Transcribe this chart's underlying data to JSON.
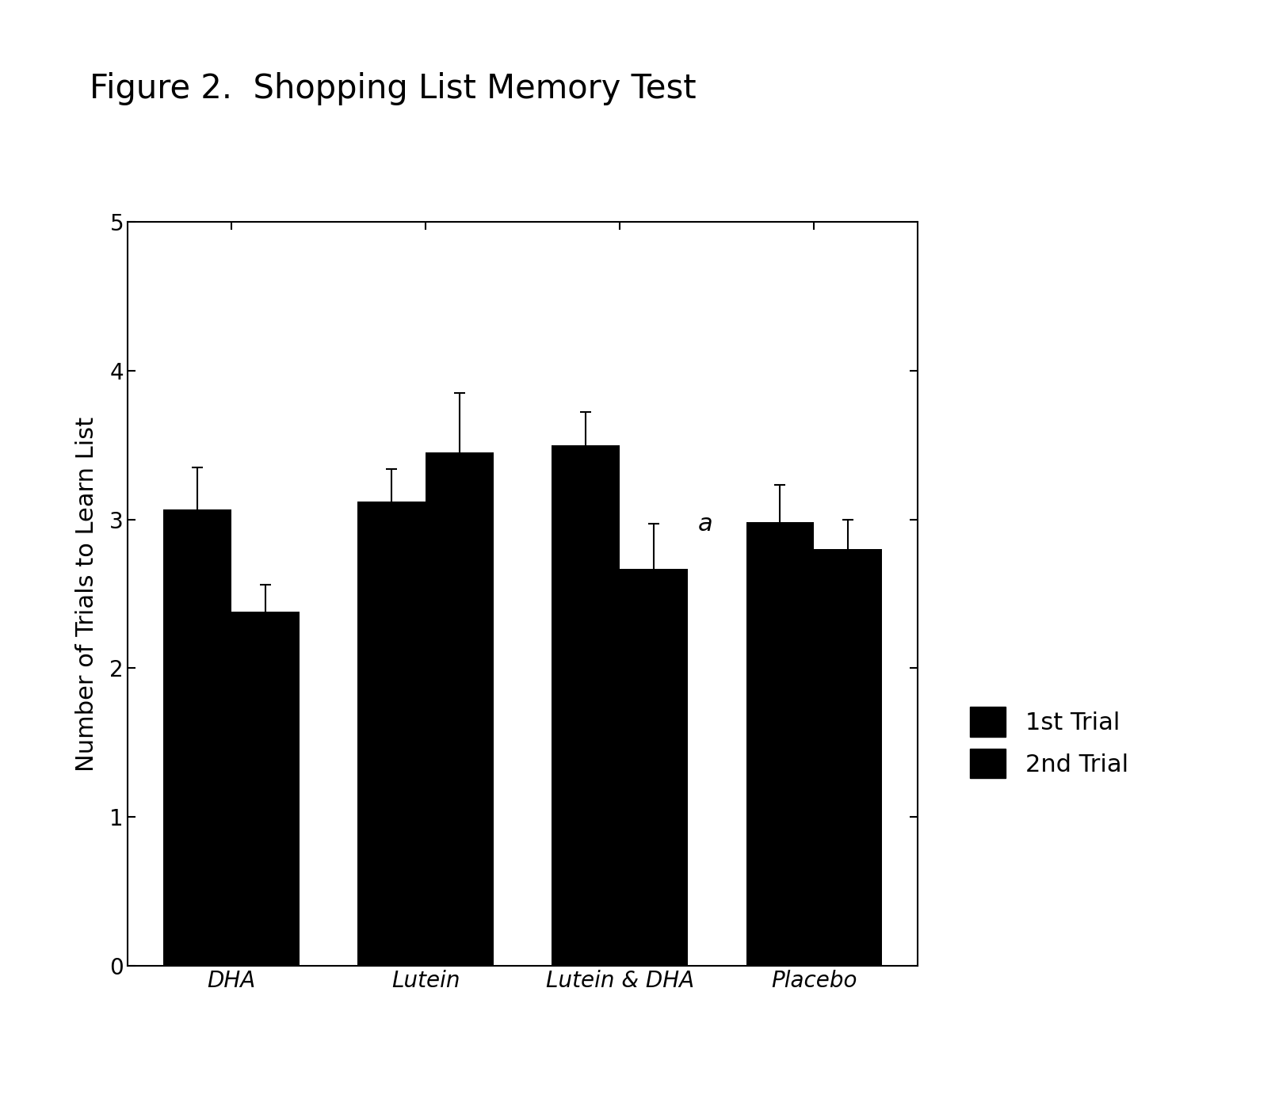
{
  "title": "Figure 2.  Shopping List Memory Test",
  "ylabel": "Number of Trials to Learn List",
  "categories": [
    "DHA",
    "Lutein",
    "Lutein & DHA",
    "Placebo"
  ],
  "bar1_values": [
    3.07,
    3.12,
    3.5,
    2.98
  ],
  "bar2_values": [
    2.38,
    3.45,
    2.67,
    2.8
  ],
  "bar1_errors": [
    0.28,
    0.22,
    0.22,
    0.25
  ],
  "bar2_errors": [
    0.18,
    0.4,
    0.3,
    0.2
  ],
  "bar_color": "#000000",
  "ylim": [
    0,
    5
  ],
  "yticks": [
    0,
    1,
    2,
    3,
    4,
    5
  ],
  "bar_width": 0.35,
  "annotation_text": "a",
  "legend_labels": [
    "1st Trial",
    "2nd Trial"
  ],
  "title_fontsize": 30,
  "label_fontsize": 22,
  "tick_fontsize": 20,
  "legend_fontsize": 22,
  "background_color": "#ffffff"
}
